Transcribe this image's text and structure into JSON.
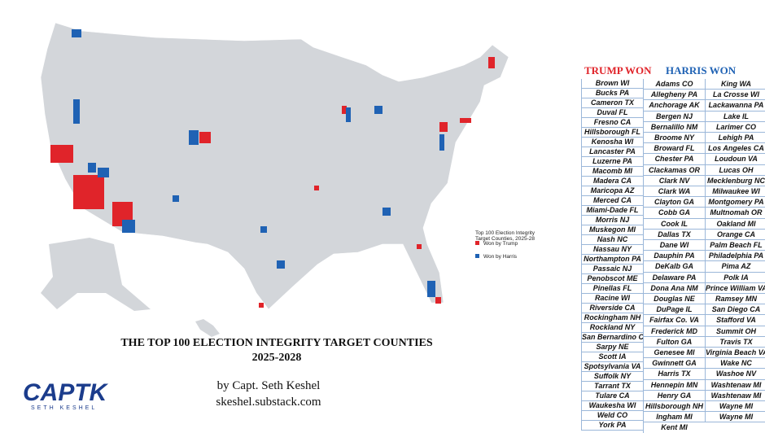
{
  "header": {
    "title": "THE TOP 100 ELECTION INTEGRITY TARGET COUNTIES",
    "subtitle": "2025-2028",
    "byline": "by Capt. Seth Keshel",
    "website": "skeshel.substack.com"
  },
  "logo": {
    "text": "CAPTK",
    "subtitle": "SETH KESHEL"
  },
  "legend": {
    "title": "Top 100 Election Integrity Target Counties, 2025-28",
    "items": [
      "Won by Trump",
      "Won by Harris"
    ]
  },
  "table": {
    "trump_header": "TRUMP WON",
    "harris_header": "HARRIS WON",
    "columns": [
      [
        "Brown WI",
        "Bucks PA",
        "Cameron TX",
        "Duval FL",
        "Fresno CA",
        "Hillsborough FL",
        "Kenosha WI",
        "Lancaster PA",
        "Luzerne PA",
        "Macomb MI",
        "Madera CA",
        "Maricopa AZ",
        "Merced CA",
        "Miami-Dade FL",
        "Morris NJ",
        "Muskegon MI",
        "Nash NC",
        "Nassau NY",
        "Northampton PA",
        "Passaic NJ",
        "Penobscot ME",
        "Pinellas FL",
        "Racine WI",
        "Riverside CA",
        "Rockingham NH",
        "Rockland NY",
        "San Bernardino CA",
        "Sarpy NE",
        "Scott IA",
        "Spotsylvania VA",
        "Suffolk NY",
        "Tarrant TX",
        "Tulare CA",
        "Waukesha WI",
        "Weld CO",
        "York PA"
      ],
      [
        "Adams CO",
        "Allegheny PA",
        "Anchorage AK",
        "Bergen NJ",
        "Bernalillo NM",
        "Broome NY",
        "Broward FL",
        "Chester PA",
        "Clackamas OR",
        "Clark NV",
        "Clark WA",
        "Clayton GA",
        "Cobb GA",
        "Cook IL",
        "Dallas TX",
        "Dane WI",
        "Dauphin PA",
        "DeKalb GA",
        "Delaware PA",
        "Dona Ana NM",
        "Douglas NE",
        "DuPage IL",
        "Fairfax Co. VA",
        "Frederick MD",
        "Fulton GA",
        "Genesee MI",
        "Gwinnett GA",
        "Harris TX",
        "Hennepin MN",
        "Henry GA",
        "Hillsborough NH",
        "Ingham MI",
        "Kent MI"
      ],
      [
        "King WA",
        "La Crosse WI",
        "Lackawanna PA",
        "Lake IL",
        "Larimer CO",
        "Lehigh PA",
        "Los Angeles CA",
        "Loudoun VA",
        "Lucas OH",
        "Mecklenburg NC",
        "Milwaukee WI",
        "Montgomery PA",
        "Multnomah OR",
        "Oakland MI",
        "Orange CA",
        "Palm Beach FL",
        "Philadelphia PA",
        "Pima AZ",
        "Polk IA",
        "Prince William VA",
        "Ramsey MN",
        "San Diego CA",
        "Stafford VA",
        "Summit OH",
        "Travis TX",
        "Virginia Beach VA",
        "Wake NC",
        "Washoe NV",
        "Washtenaw MI",
        "Washtenaw MI",
        "Wayne MI",
        "Wayne MI"
      ]
    ]
  }
}
